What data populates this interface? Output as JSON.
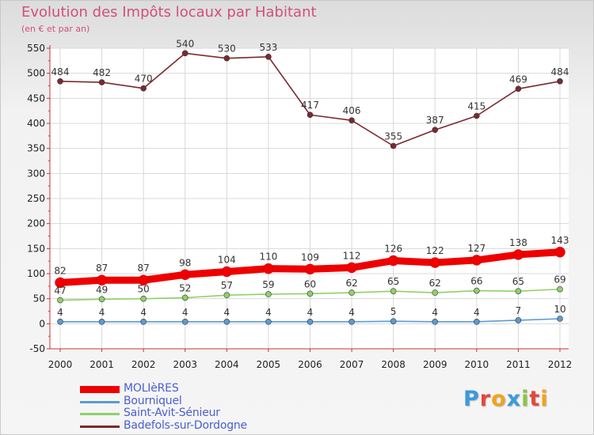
{
  "chart_data": {
    "type": "line",
    "title": "Evolution des Impôts locaux par Habitant",
    "subtitle": "(en € et par an)",
    "xlabel": "",
    "ylabel": "",
    "ylim": [
      -50,
      550
    ],
    "y_ticks": [
      -50,
      0,
      50,
      100,
      150,
      200,
      250,
      300,
      350,
      400,
      450,
      500,
      550
    ],
    "categories": [
      "2000",
      "2001",
      "2002",
      "2003",
      "2004",
      "2005",
      "2006",
      "2007",
      "2008",
      "2009",
      "2010",
      "2011",
      "2012"
    ],
    "series": [
      {
        "name": "MOLIèRES",
        "color": "#ee0000",
        "values": [
          82,
          87,
          87,
          98,
          104,
          110,
          109,
          112,
          126,
          122,
          127,
          138,
          143
        ]
      },
      {
        "name": "Bourniquel",
        "color": "#5b9bd5",
        "values": [
          4,
          4,
          4,
          4,
          4,
          4,
          4,
          4,
          5,
          4,
          4,
          7,
          10
        ]
      },
      {
        "name": "Saint-Avit-Sénieur",
        "color": "#8fd16a",
        "values": [
          47,
          49,
          50,
          52,
          57,
          59,
          60,
          62,
          65,
          62,
          66,
          65,
          69
        ]
      },
      {
        "name": "Badefols-sur-Dordogne",
        "color": "#7a2a30",
        "values": [
          484,
          482,
          470,
          540,
          530,
          533,
          417,
          406,
          355,
          387,
          415,
          469,
          484
        ]
      }
    ],
    "legend_position": "bottom-left"
  },
  "brand": {
    "letters": [
      "P",
      "r",
      "o",
      "x",
      "i",
      "t",
      "i"
    ],
    "colors": [
      "#3a9bd9",
      "#e2473c",
      "#f2a31b",
      "#3a9bd9",
      "#8cc63f",
      "#e2473c",
      "#f2a31b"
    ]
  }
}
